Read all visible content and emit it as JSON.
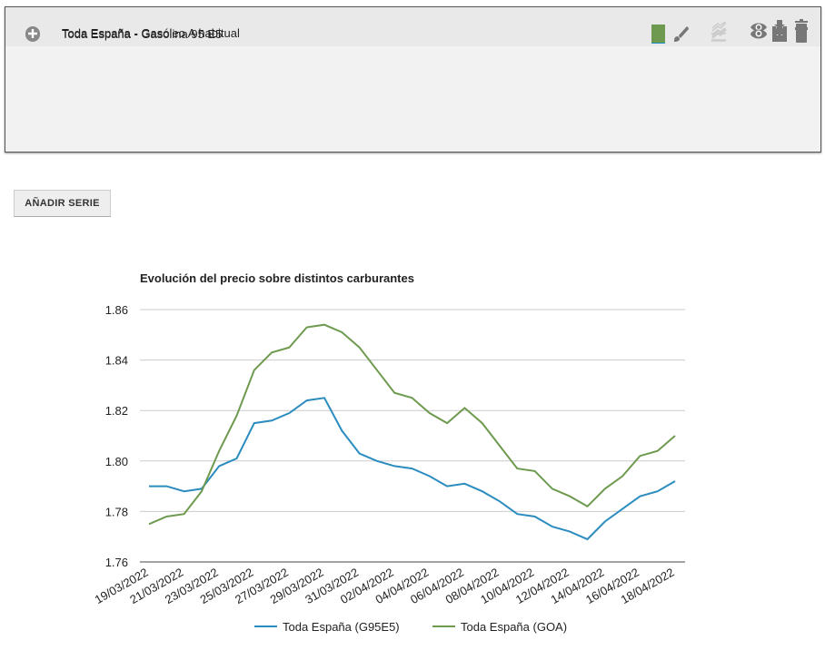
{
  "table": {
    "rows": [
      {
        "label": "Toda España - Gasolina 95 E5",
        "color": "#1e90c8"
      },
      {
        "label": "Toda España - Gasóleo A habitual",
        "color": "#6e9a4f"
      }
    ]
  },
  "button": "AÑADIR SERIE",
  "chart_data": {
    "type": "line",
    "title": "Evolución del precio sobre distintos carburantes",
    "categories": [
      "19/03/2022",
      null,
      "21/03/2022",
      null,
      "23/03/2022",
      null,
      "25/03/2022",
      null,
      "27/03/2022",
      null,
      "29/03/2022",
      null,
      "31/03/2022",
      null,
      "02/04/2022",
      null,
      "04/04/2022",
      null,
      "06/04/2022",
      null,
      "08/04/2022",
      null,
      "10/04/2022",
      null,
      "12/04/2022",
      null,
      "14/04/2022",
      null,
      "16/04/2022",
      null,
      "18/04/2022"
    ],
    "series": [
      {
        "name": "Toda España (G95E5)",
        "color": "#2b8cbf",
        "values": [
          1.79,
          1.79,
          1.788,
          1.789,
          1.798,
          1.801,
          1.815,
          1.816,
          1.819,
          1.824,
          1.825,
          1.812,
          1.803,
          1.8,
          1.798,
          1.797,
          1.794,
          1.79,
          1.791,
          1.788,
          1.784,
          1.779,
          1.778,
          1.774,
          1.772,
          1.769,
          1.776,
          1.781,
          1.786,
          1.788,
          1.792
        ]
      },
      {
        "name": "Toda España (GOA)",
        "color": "#6e9a4f",
        "values": [
          1.775,
          1.778,
          1.779,
          1.788,
          1.804,
          1.818,
          1.836,
          1.843,
          1.845,
          1.853,
          1.854,
          1.851,
          1.845,
          1.836,
          1.827,
          1.825,
          1.819,
          1.815,
          1.821,
          1.815,
          1.806,
          1.797,
          1.796,
          1.789,
          1.786,
          1.782,
          1.789,
          1.794,
          1.802,
          1.804,
          1.81
        ]
      }
    ],
    "ylim": [
      1.76,
      1.86
    ],
    "yticks": [
      1.76,
      1.78,
      {
        "value": 1.8,
        "label": "1.80"
      },
      1.82,
      1.84,
      1.86
    ],
    "grid": true,
    "legend": "bottom"
  }
}
